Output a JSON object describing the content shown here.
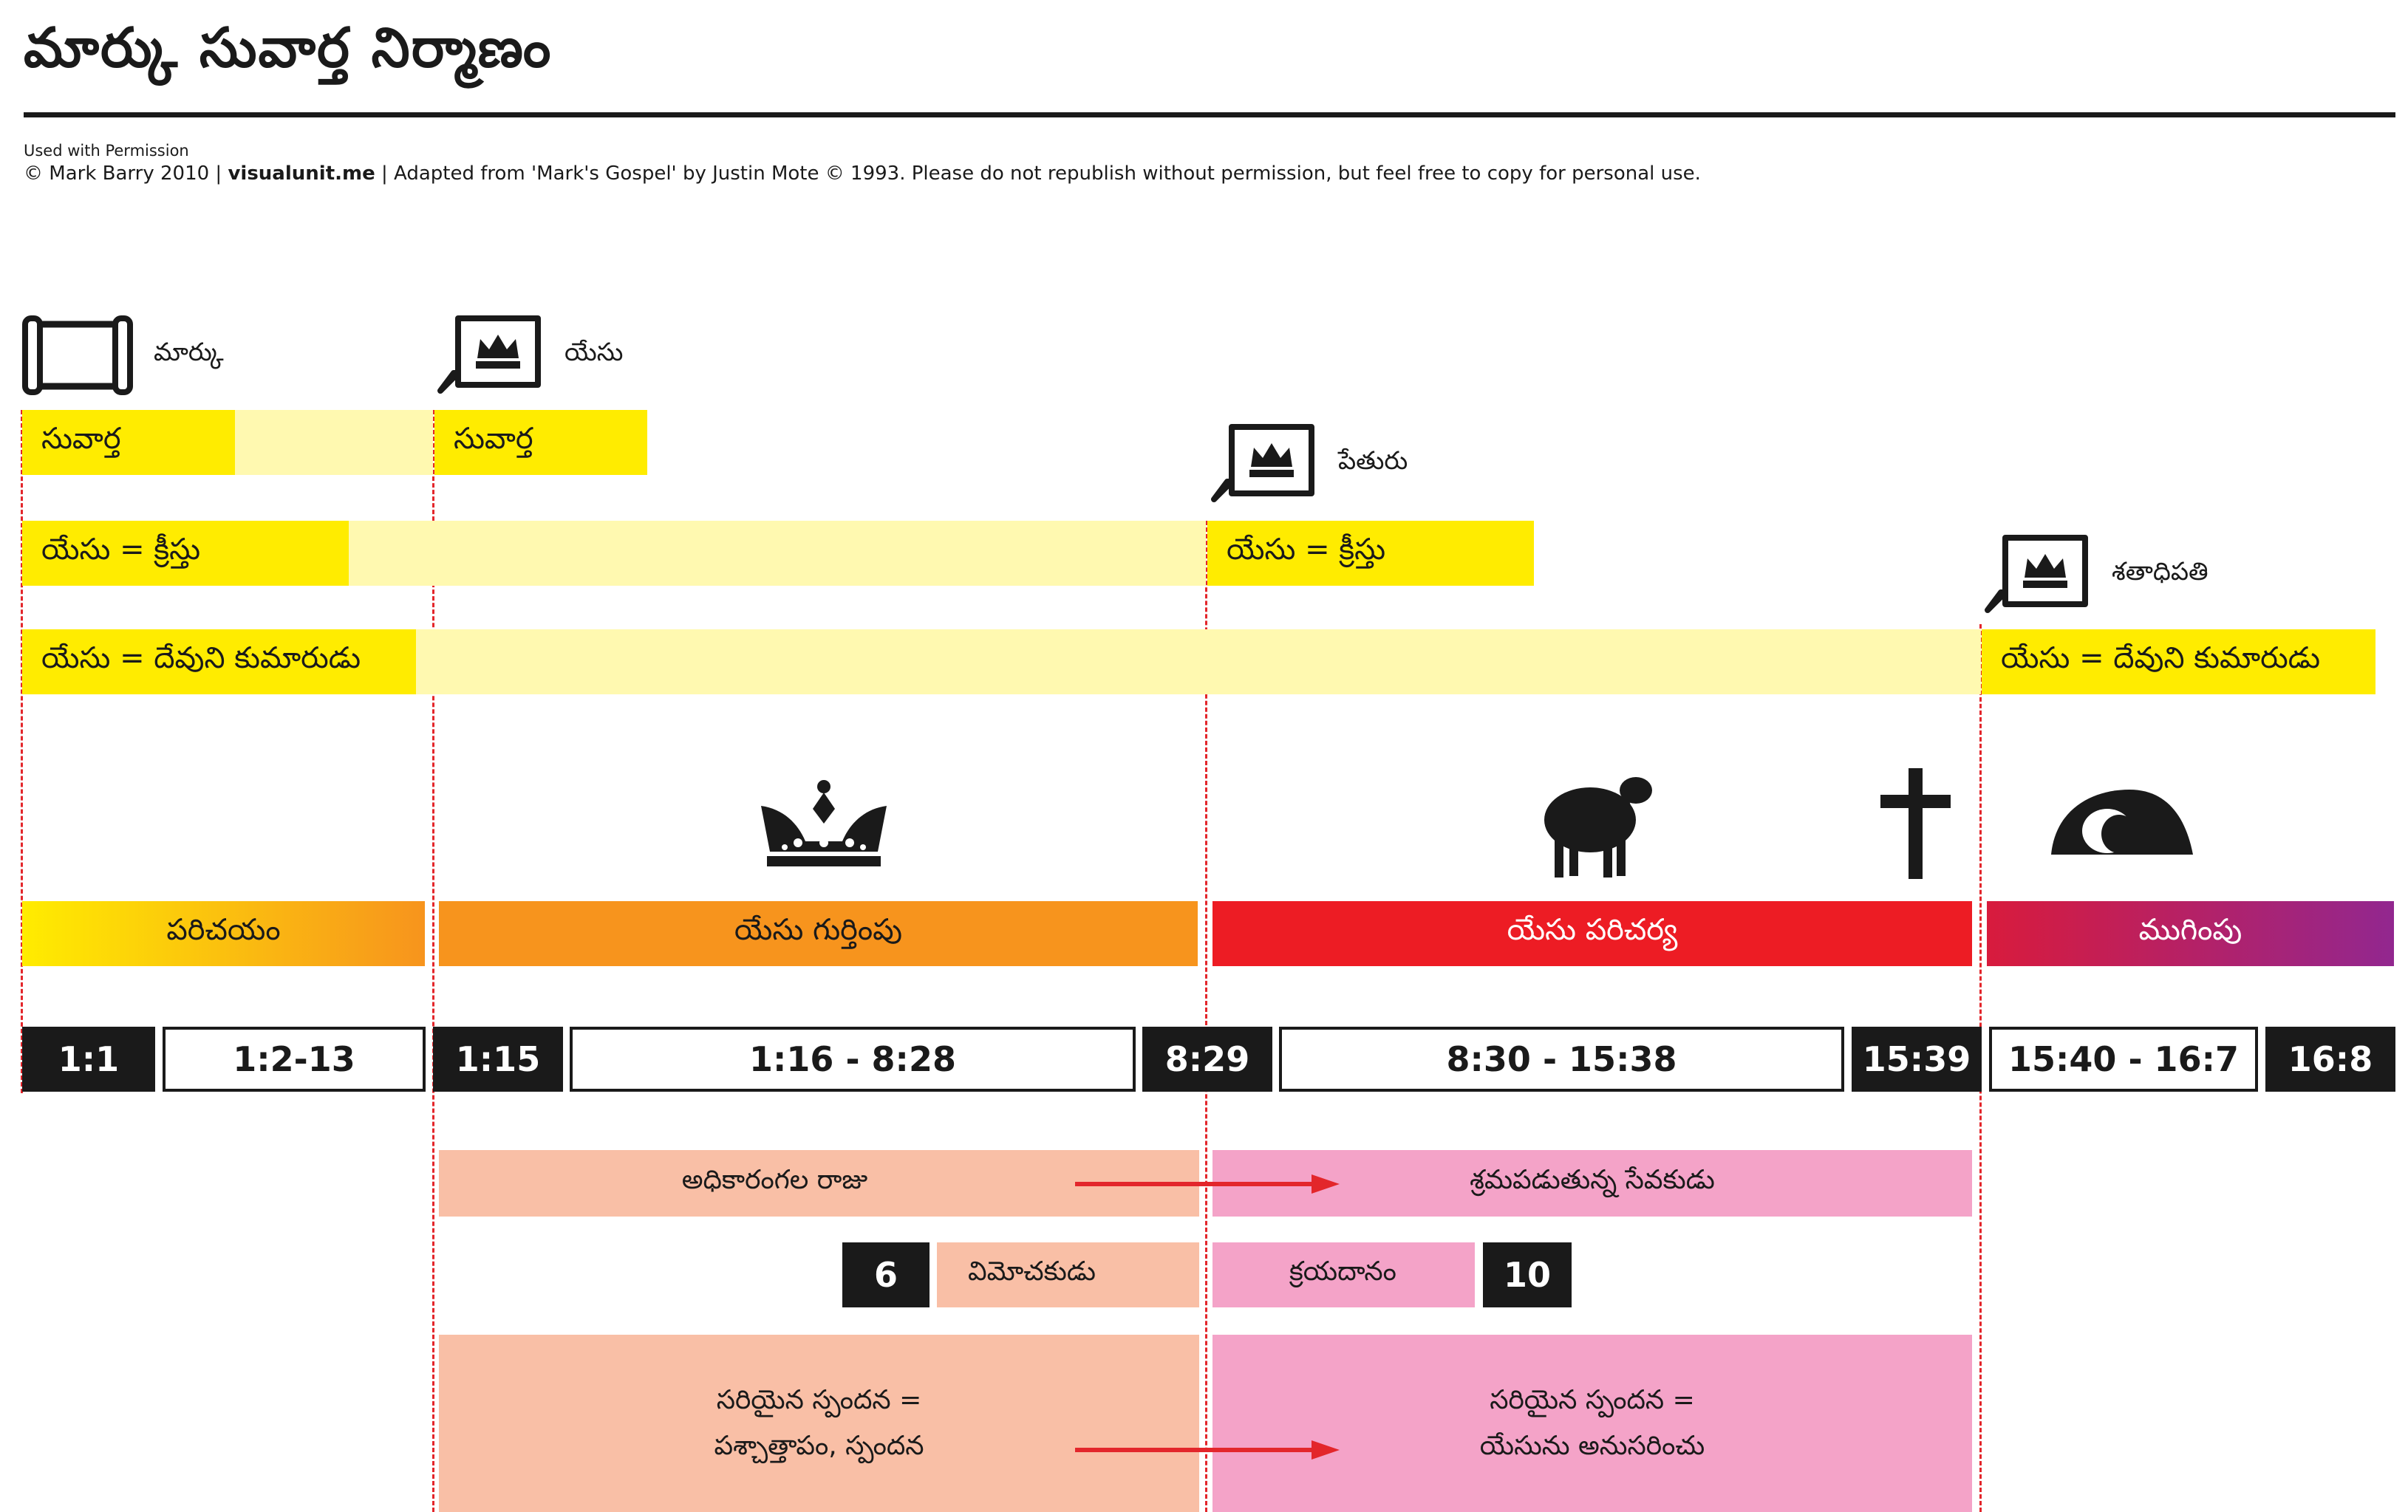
{
  "title": "మార్కు సువార్త నిర్మాణం",
  "permission": "Used  with  Permission",
  "credit": {
    "prefix": "© Mark Barry 2010  |  ",
    "site": "visualunit.me",
    "suffix": "  |  Adapted from 'Mark's Gospel' by Justin Mote © 1993. Please do not republish without permission, but feel free to copy for personal use."
  },
  "speakers": {
    "mark": "మార్కు",
    "jesus": "యేసు",
    "peter": "పేతురు",
    "centurion": "శతాధిపతి"
  },
  "themes": {
    "gospel": "సువార్త",
    "jesus_christ": "యేసు  =  క్రీస్తు",
    "jesus_son_of_god": "యేసు  =  దేవుని  కుమారుడు"
  },
  "icons": [
    "scroll-icon",
    "speech-crown-icon",
    "crown-icon",
    "lamb-icon",
    "cross-icon",
    "tomb-icon"
  ],
  "sections": {
    "intro": "పరిచయం",
    "identity": "యేసు  గుర్తింపు",
    "ministry": "యేసు  పరిచర్య",
    "ending": "ముగింపు"
  },
  "refs": {
    "r1": "1:1",
    "r2": "1:2-13",
    "r3": "1:15",
    "r4": "1:16 - 8:28",
    "r5": "8:29",
    "r6": "8:30 - 15:38",
    "r7": "15:39",
    "r8": "15:40 - 16:7",
    "r9": "16:8"
  },
  "lower": {
    "king": "అధికారంగల రాజు",
    "servant": "శ్రమపడుతున్న సేవకుడు",
    "ch6": "6",
    "deliverer": "విమోచకుడు",
    "ransom": "క్రయదానం",
    "ch10": "10",
    "resp1_line1": "సరియైన  స్పందన  =",
    "resp1_line2": "పశ్చాత్తాపం,  స్పందన",
    "resp2_line1": "సరియైన  స్పందన  =",
    "resp2_line2": "యేసును  అనుసరించు"
  },
  "colors": {
    "yellow": "#ffec00",
    "light_yellow": "#fff9b0",
    "orange": "#f7941d",
    "red": "#ed1c24",
    "purple": "#92278f",
    "peach": "#f9bfa6",
    "pink": "#f4a3c8",
    "arrow": "#e3262b"
  }
}
